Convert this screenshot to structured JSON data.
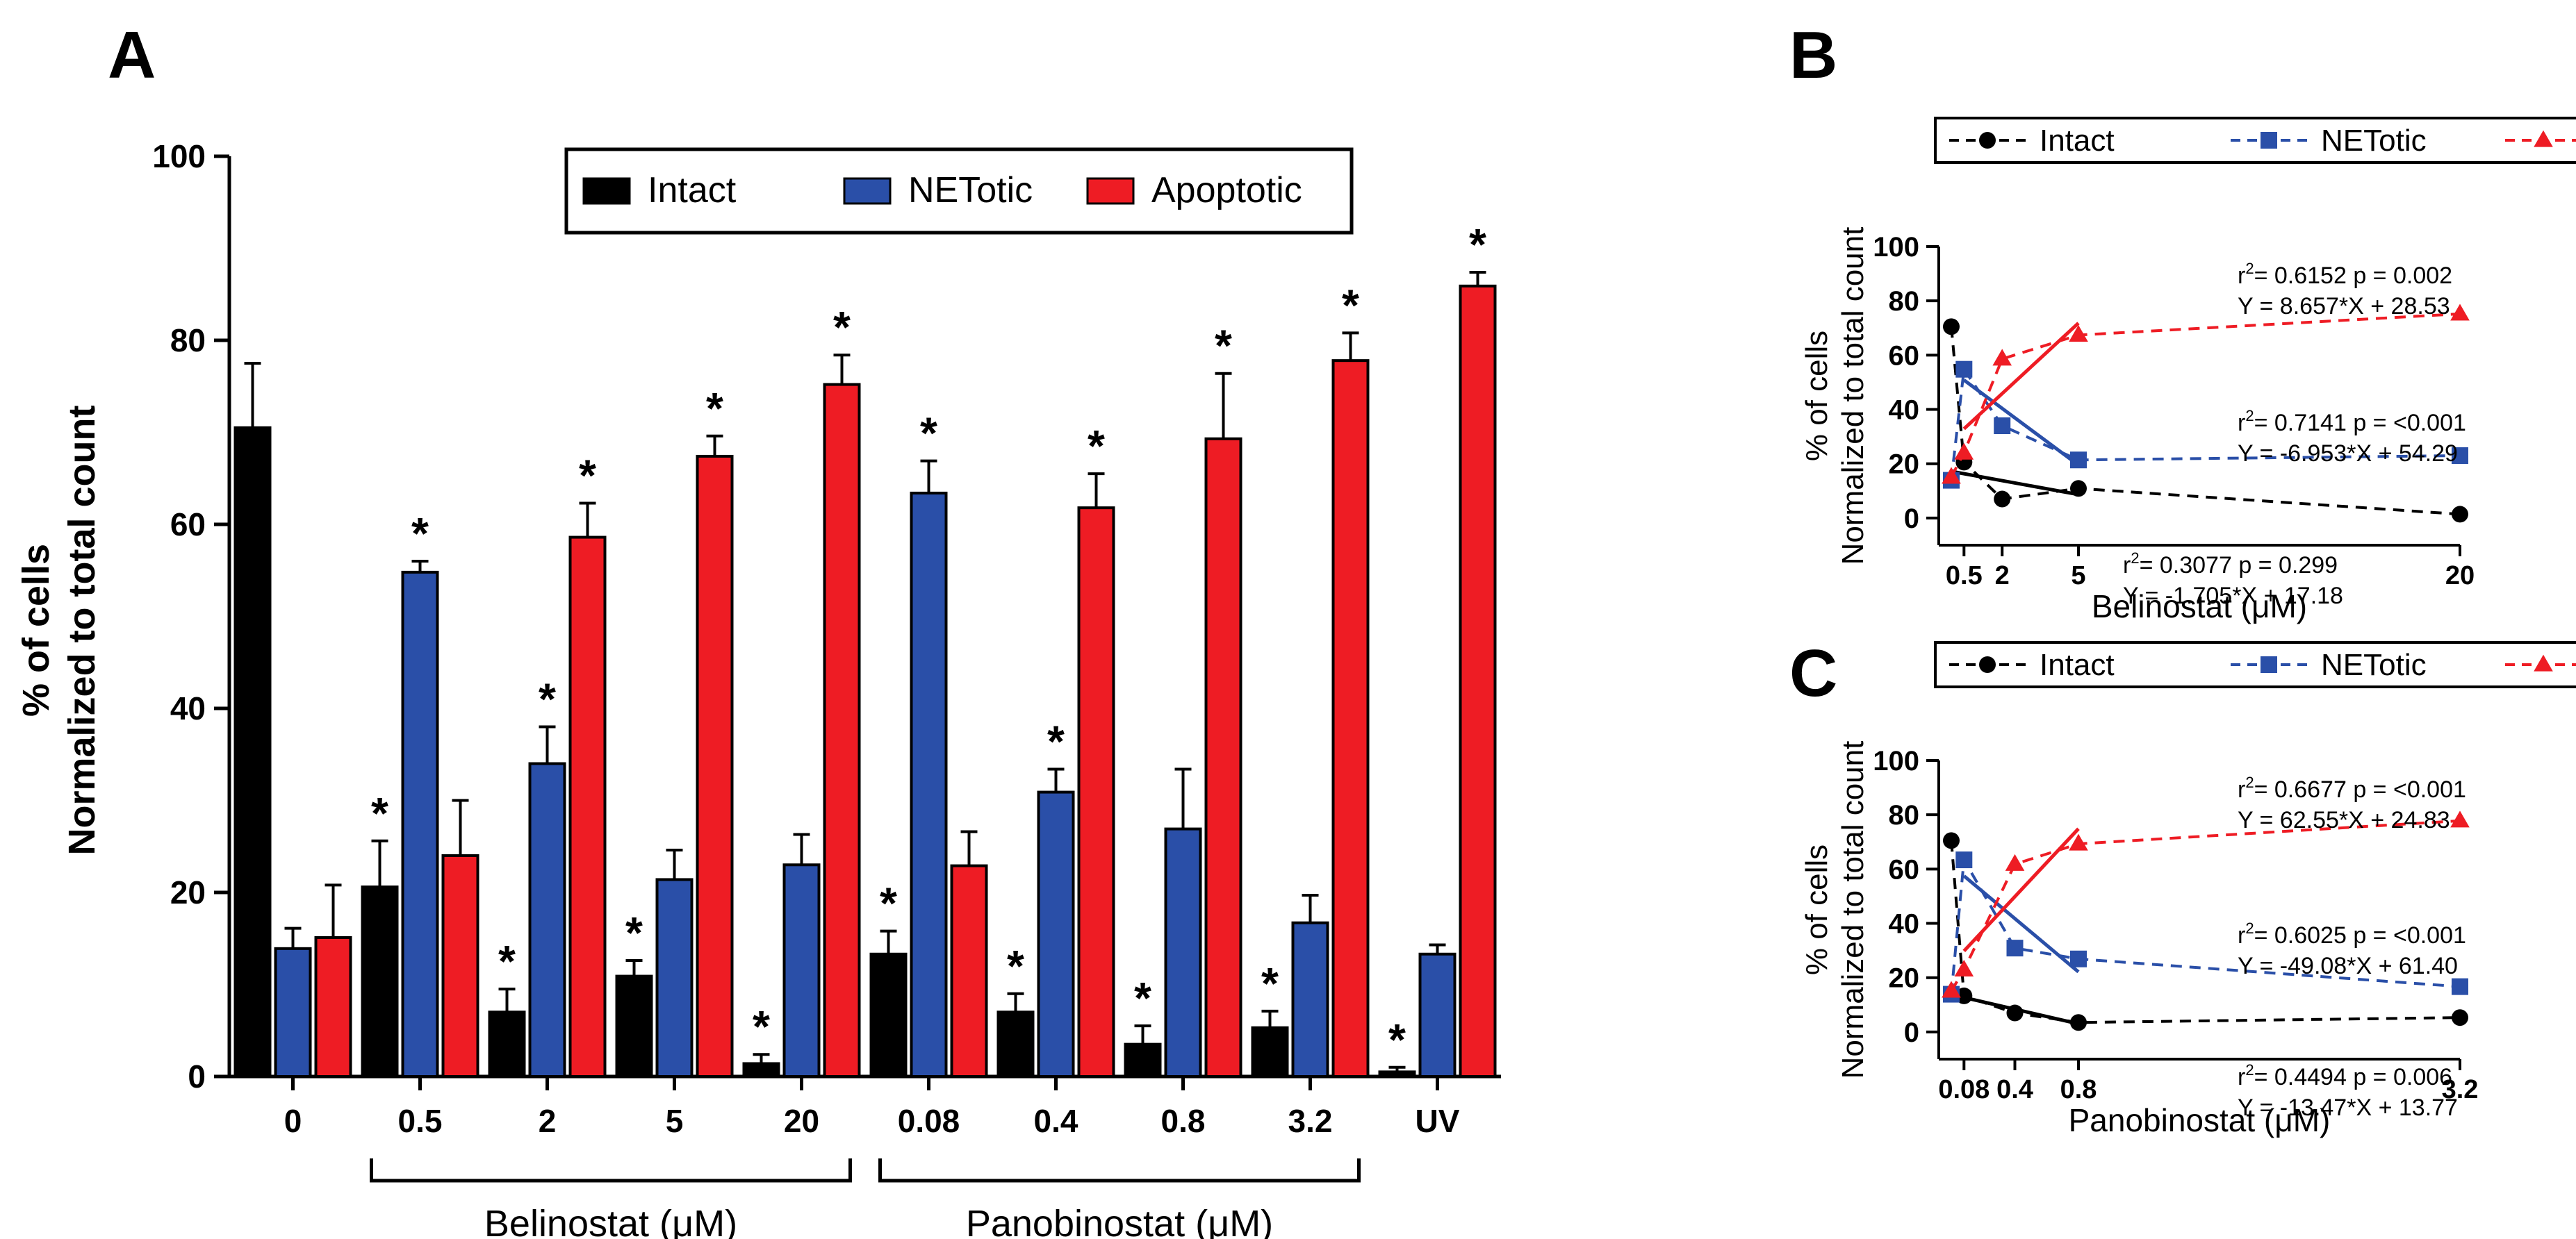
{
  "panel_labels": {
    "a": "A",
    "b": "B",
    "c": "C"
  },
  "colors": {
    "intact": "#000000",
    "netotic": "#2a4fa8",
    "apoptotic": "#ee1c24",
    "axis": "#000000"
  },
  "chart_data": [
    {
      "id": "A",
      "type": "bar",
      "title": "",
      "ylabel_line1": "% of cells",
      "ylabel_line2": "Normalized to total count",
      "ylim": [
        0,
        100
      ],
      "yticks": [
        0,
        20,
        40,
        60,
        80,
        100
      ],
      "categories": [
        "0",
        "0.5",
        "2",
        "5",
        "20",
        "0.08",
        "0.4",
        "0.8",
        "3.2",
        "UV"
      ],
      "group_labels": [
        {
          "label": "Belinostat (μM)",
          "from": 1,
          "to": 4
        },
        {
          "label": "Panobinostat (μM)",
          "from": 5,
          "to": 8
        }
      ],
      "series": [
        {
          "name": "Intact",
          "color": "#000000",
          "values": [
            70.5,
            20.6,
            7.0,
            10.9,
            1.4,
            13.3,
            7.0,
            3.5,
            5.3,
            0.5
          ],
          "errors": [
            7.0,
            5.0,
            2.5,
            1.7,
            1.0,
            2.5,
            2.0,
            2.0,
            1.8,
            0.5
          ],
          "significant": [
            false,
            true,
            true,
            true,
            true,
            true,
            true,
            true,
            true,
            true
          ]
        },
        {
          "name": "NETotic",
          "color": "#2a4fa8",
          "values": [
            13.9,
            54.8,
            34.0,
            21.4,
            23.0,
            63.4,
            30.9,
            26.9,
            16.7,
            13.3
          ],
          "errors": [
            2.2,
            1.2,
            4.0,
            3.2,
            3.3,
            3.5,
            2.5,
            6.5,
            3.0,
            1.0
          ],
          "significant": [
            false,
            true,
            true,
            false,
            false,
            true,
            true,
            false,
            false,
            false
          ]
        },
        {
          "name": "Apoptotic",
          "color": "#ee1c24",
          "values": [
            15.1,
            24.0,
            58.6,
            67.4,
            75.2,
            22.9,
            61.8,
            69.3,
            77.8,
            85.9
          ],
          "errors": [
            5.7,
            6.0,
            3.7,
            2.2,
            3.2,
            3.7,
            3.7,
            7.1,
            3.0,
            1.5
          ],
          "significant": [
            false,
            false,
            true,
            true,
            true,
            false,
            true,
            true,
            true,
            true
          ]
        }
      ],
      "significance_marker": "*",
      "legend": [
        "Intact",
        "NETotic",
        "Apoptotic"
      ],
      "legend_position": "top-center"
    },
    {
      "id": "B",
      "type": "line",
      "ylabel_line1": "% of cells",
      "ylabel_line2": "Normalized to total count",
      "xlabel": "Belinostat (μM)",
      "xlim": [
        0,
        20
      ],
      "ylim": [
        -10,
        100
      ],
      "yticks": [
        0,
        20,
        40,
        60,
        80,
        100
      ],
      "xtick_values": [
        0.5,
        2,
        5,
        20
      ],
      "xtick_labels": [
        "0.5",
        "2",
        "5",
        "20"
      ],
      "x": [
        0,
        0.5,
        2,
        5,
        20
      ],
      "series": [
        {
          "name": "Intact",
          "color": "#000000",
          "marker": "circle",
          "values": [
            70.5,
            20.6,
            7.0,
            10.9,
            1.4
          ],
          "fit": {
            "slope": -1.705,
            "intercept": 17.18,
            "x_range": [
              0,
              5
            ]
          },
          "stats_line1": "r2= 0.3077  p = 0.299",
          "stats_line2": "Y = -1.705*X + 17.18"
        },
        {
          "name": "NETotic",
          "color": "#2a4fa8",
          "marker": "square",
          "values": [
            13.9,
            54.8,
            34.0,
            21.4,
            23.0
          ],
          "fit": {
            "slope": -6.953,
            "intercept": 54.29,
            "x_range": [
              0.5,
              5
            ]
          },
          "stats_line1": "r2= 0.7141  p = <0.001",
          "stats_line2": "Y = -6.953*X + 54.29"
        },
        {
          "name": "Apoptotic",
          "color": "#ee1c24",
          "marker": "triangle",
          "values": [
            15.1,
            24.0,
            58.6,
            67.4,
            75.2
          ],
          "fit": {
            "slope": 8.657,
            "intercept": 28.53,
            "x_range": [
              0.5,
              5
            ]
          },
          "stats_line1": "r2= 0.6152  p = 0.002",
          "stats_line2": "Y = 8.657*X + 28.53"
        }
      ],
      "legend": [
        "Intact",
        "NETotic",
        "Apoptotic"
      ],
      "legend_position": "top"
    },
    {
      "id": "C",
      "type": "line",
      "ylabel_line1": "% of cells",
      "ylabel_line2": "Normalized to total count",
      "xlabel": "Panobinostat (μM)",
      "xlim": [
        0,
        3.2
      ],
      "ylim": [
        -10,
        100
      ],
      "yticks": [
        0,
        20,
        40,
        60,
        80,
        100
      ],
      "xtick_values": [
        0.08,
        0.4,
        0.8,
        3.2
      ],
      "xtick_labels": [
        "0.08",
        "0.4",
        "0.8",
        "3.2"
      ],
      "x": [
        0,
        0.08,
        0.4,
        0.8,
        3.2
      ],
      "series": [
        {
          "name": "Intact",
          "color": "#000000",
          "marker": "circle",
          "values": [
            70.5,
            13.3,
            7.0,
            3.5,
            5.3
          ],
          "fit": {
            "slope": -13.47,
            "intercept": 13.77,
            "x_range": [
              0,
              0.8
            ]
          },
          "stats_line1": "r2= 0.4494  p = 0.006",
          "stats_line2": "Y = -13.47*X + 13.77"
        },
        {
          "name": "NETotic",
          "color": "#2a4fa8",
          "marker": "square",
          "values": [
            13.9,
            63.4,
            30.9,
            26.9,
            16.7
          ],
          "fit": {
            "slope": -49.08,
            "intercept": 61.4,
            "x_range": [
              0.08,
              0.8
            ]
          },
          "stats_line1": "r2= 0.6025  p = <0.001",
          "stats_line2": "Y = -49.08*X + 61.40"
        },
        {
          "name": "Apoptotic",
          "color": "#ee1c24",
          "marker": "triangle",
          "values": [
            15.1,
            22.9,
            61.8,
            69.3,
            77.8
          ],
          "fit": {
            "slope": 62.55,
            "intercept": 24.83,
            "x_range": [
              0.08,
              0.8
            ]
          },
          "stats_line1": "r2= 0.6677  p = <0.001",
          "stats_line2": "Y = 62.55*X + 24.83"
        }
      ],
      "legend": [
        "Intact",
        "NETotic",
        "Apoptotic"
      ],
      "legend_position": "top"
    }
  ]
}
